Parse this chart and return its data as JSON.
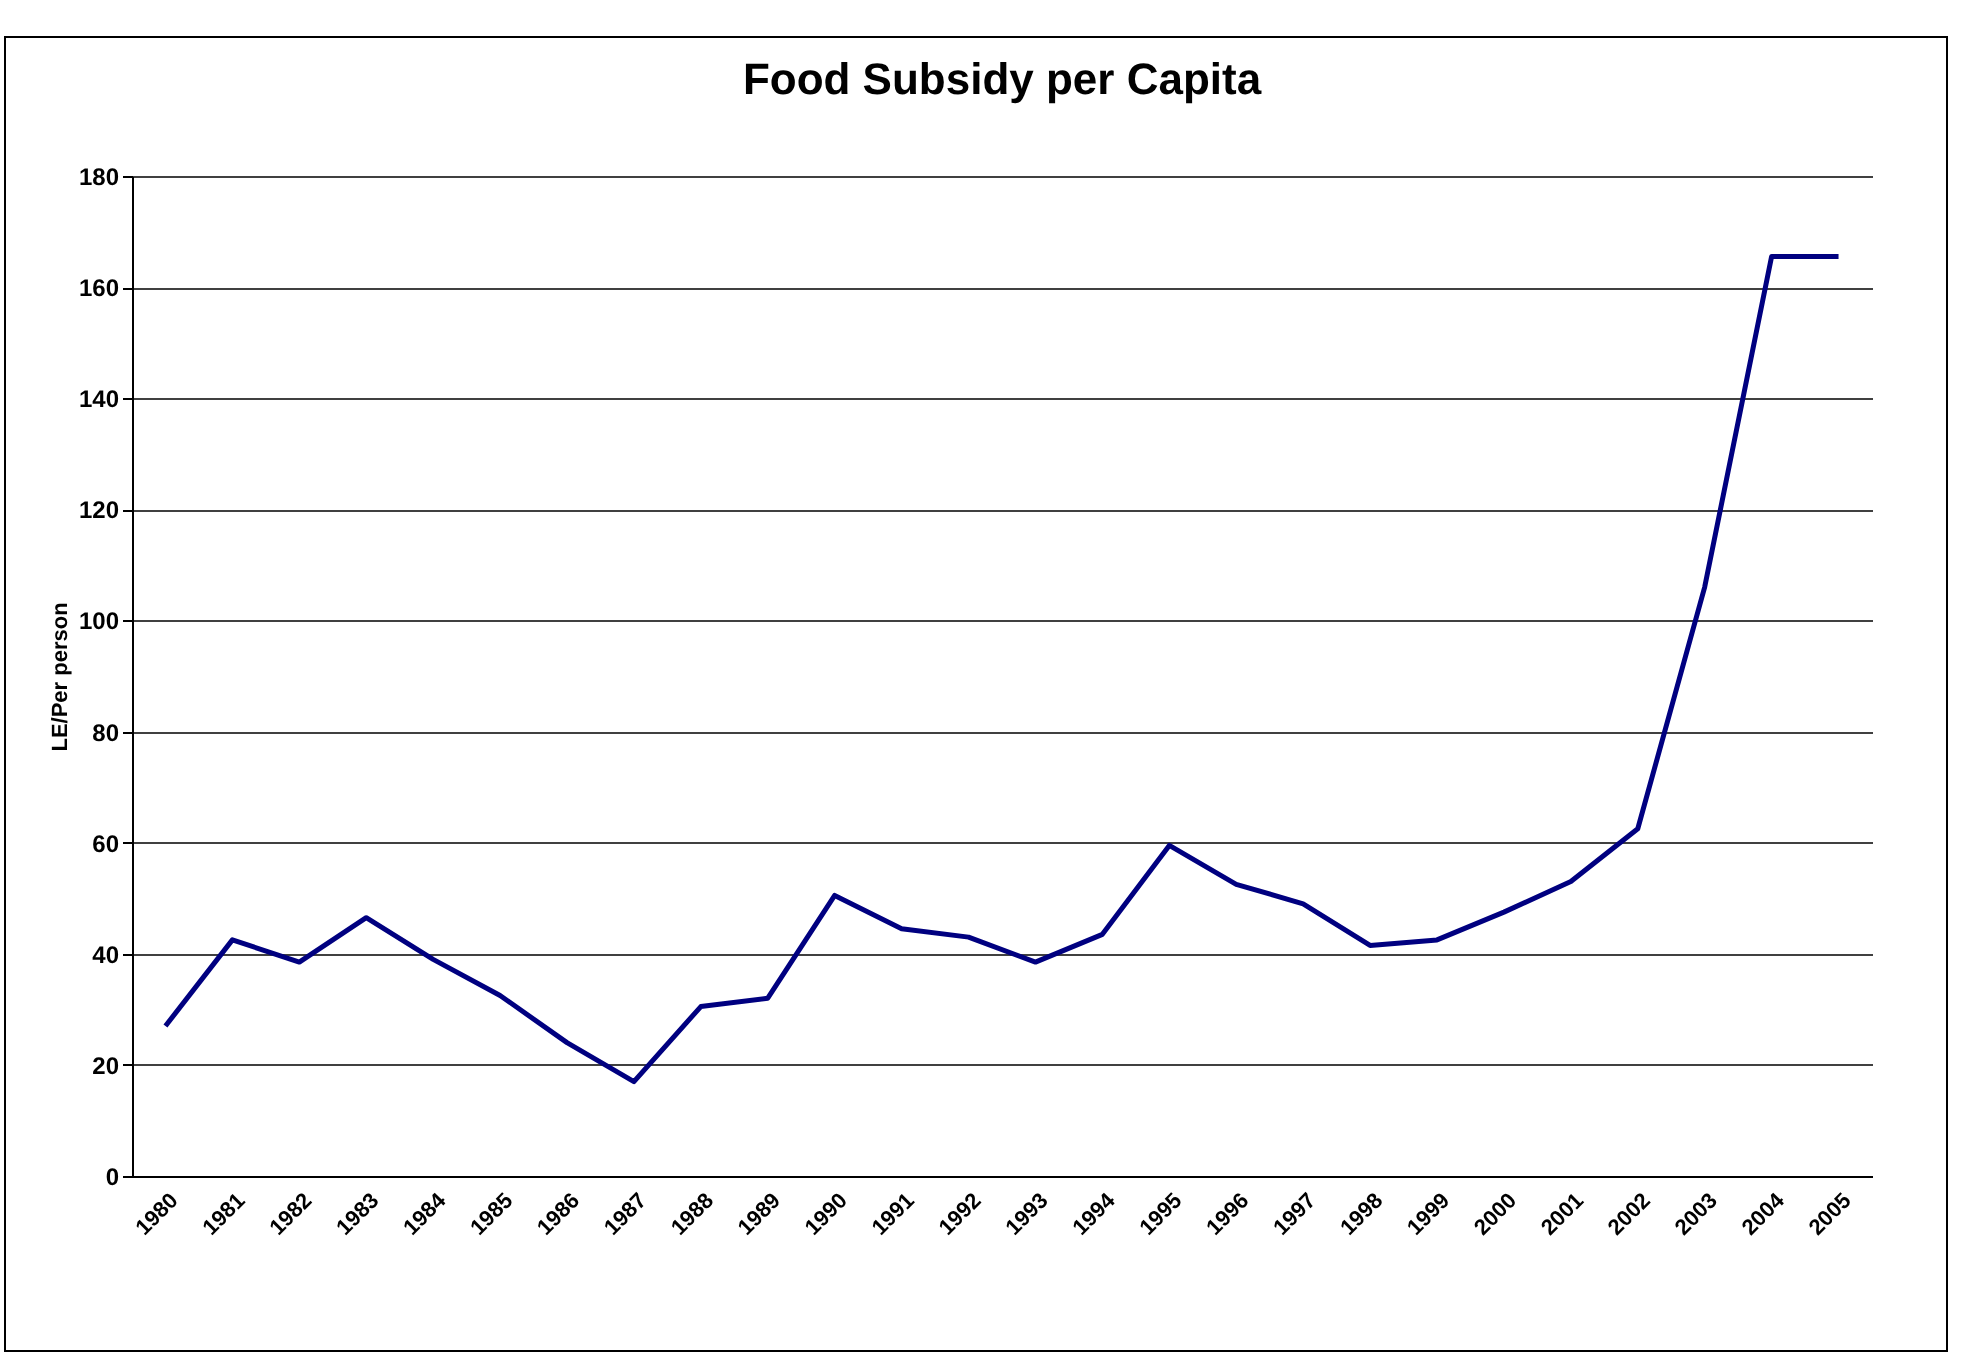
{
  "chart_data": {
    "type": "line",
    "title": "Food Subsidy per Capita",
    "ylabel": "LE/Per person",
    "categories": [
      "1980",
      "1981",
      "1982",
      "1983",
      "1984",
      "1985",
      "1986",
      "1987",
      "1988",
      "1989",
      "1990",
      "1991",
      "1992",
      "1993",
      "1994",
      "1995",
      "1996",
      "1997",
      "1998",
      "1999",
      "2000",
      "2001",
      "2002",
      "2003",
      "2004",
      "2005"
    ],
    "series": [
      {
        "color": "#000080",
        "values": [
          27,
          42.5,
          38.5,
          46.5,
          39,
          32.5,
          24,
          17,
          30.5,
          32,
          50.5,
          44.5,
          43,
          38.5,
          43.5,
          59.5,
          52.5,
          49,
          41.5,
          42.5,
          47.5,
          53,
          62.5,
          106,
          165.5,
          165.5
        ]
      }
    ],
    "ylim": [
      0,
      180
    ],
    "yticks": [
      0,
      20,
      40,
      60,
      80,
      100,
      120,
      140,
      160,
      180
    ],
    "grid": "y",
    "marker": "none",
    "line_style": "solid"
  }
}
